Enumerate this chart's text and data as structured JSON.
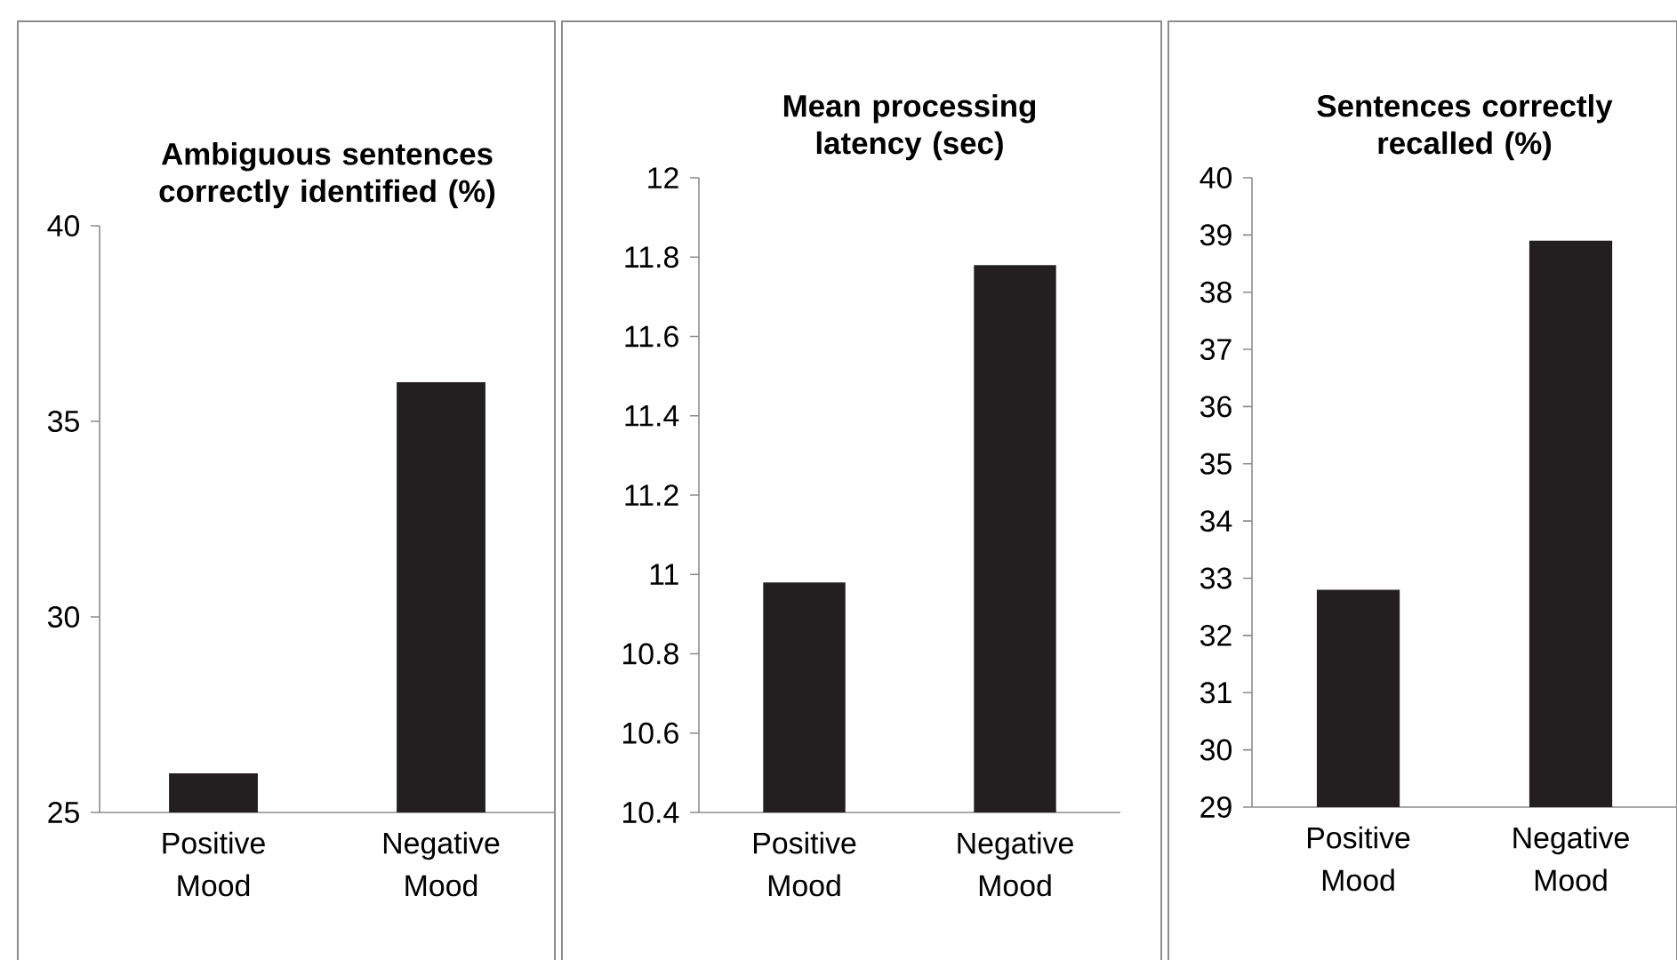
{
  "chart_data": [
    {
      "type": "bar",
      "title": "Ambiguous sentences correctly identified (%)",
      "categories": [
        "Positive Mood",
        "Negative Mood"
      ],
      "values": [
        26,
        36
      ],
      "color": "#231f20",
      "ylim": [
        25,
        40
      ],
      "yticks": [
        25,
        30,
        35,
        40
      ]
    },
    {
      "type": "bar",
      "title": "Mean processing latency (sec)",
      "categories": [
        "Positive Mood",
        "Negative Mood"
      ],
      "values": [
        10.98,
        11.78
      ],
      "color": "#231f20",
      "ylim": [
        10.4,
        12
      ],
      "yticks": [
        10.4,
        10.6,
        10.8,
        11,
        11.2,
        11.4,
        11.6,
        11.8,
        12
      ]
    },
    {
      "type": "bar",
      "title": "Sentences correctly recalled (%)",
      "categories": [
        "Positive Mood",
        "Negative Mood"
      ],
      "values": [
        32.8,
        38.9
      ],
      "color": "#231f20",
      "ylim": [
        29,
        40
      ],
      "yticks": [
        29,
        30,
        31,
        32,
        33,
        34,
        35,
        36,
        37,
        38,
        39,
        40
      ]
    }
  ]
}
